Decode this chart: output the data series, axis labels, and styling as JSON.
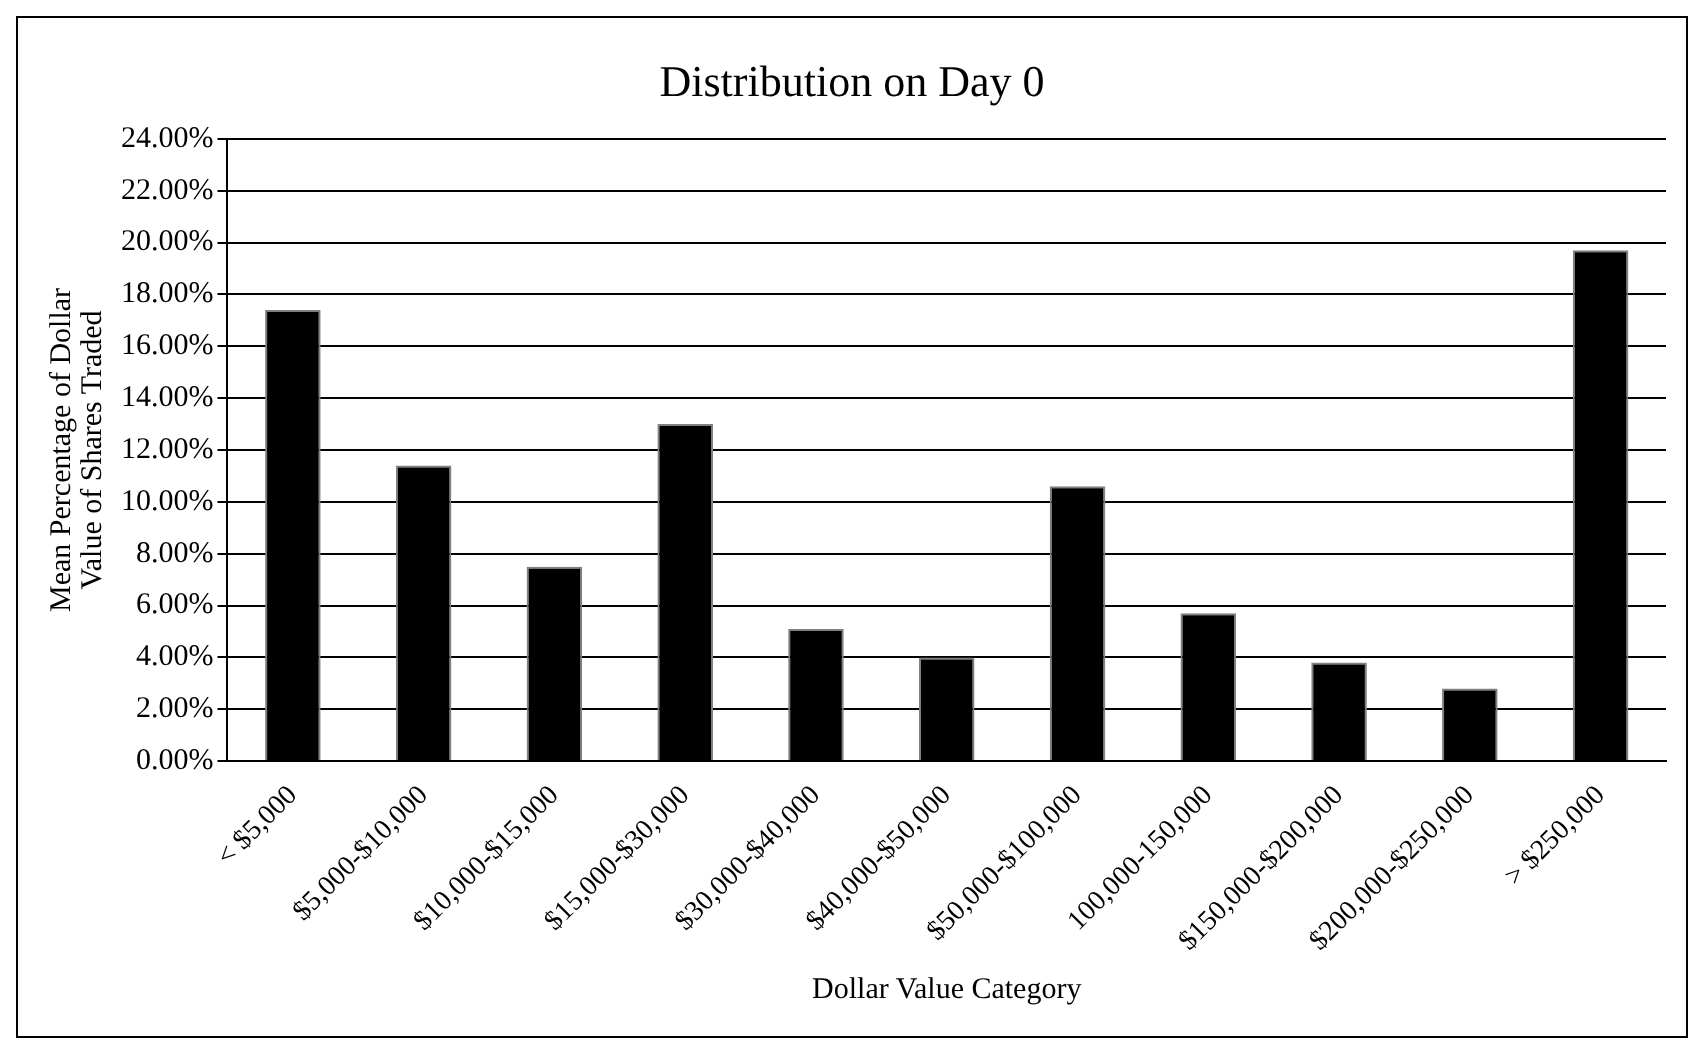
{
  "chart_data": {
    "type": "bar",
    "title": "Distribution on Day 0",
    "xlabel": "Dollar Value Category",
    "ylabel": "Mean Percentage of Dollar\nValue of Shares Traded",
    "categories": [
      "< $5,000",
      "$5,000-$10,000",
      "$10,000-$15,000",
      "$15,000-$30,000",
      "$30,000-$40,000",
      "$40,000-$50,000",
      "$50,000-$100,000",
      "100,000-150,000",
      "$150,000-$200,000",
      "$200,000-$250,000",
      "> $250,000"
    ],
    "values": [
      17.4,
      11.4,
      7.5,
      13.0,
      5.1,
      4.0,
      10.6,
      5.7,
      3.8,
      2.8,
      19.7
    ],
    "color": "#000000",
    "ylim": [
      0,
      24
    ],
    "yticks": [
      {
        "value": 0,
        "label": "0.00%"
      },
      {
        "value": 2,
        "label": "2.00%"
      },
      {
        "value": 4,
        "label": "4.00%"
      },
      {
        "value": 6,
        "label": "6.00%"
      },
      {
        "value": 8,
        "label": "8.00%"
      },
      {
        "value": 10,
        "label": "10.00%"
      },
      {
        "value": 12,
        "label": "12.00%"
      },
      {
        "value": 14,
        "label": "14.00%"
      },
      {
        "value": 16,
        "label": "16.00%"
      },
      {
        "value": 18,
        "label": "18.00%"
      },
      {
        "value": 20,
        "label": "20.00%"
      },
      {
        "value": 22,
        "label": "22.00%"
      },
      {
        "value": 24,
        "label": "24.00%"
      }
    ],
    "grid": "y",
    "legend": false
  }
}
